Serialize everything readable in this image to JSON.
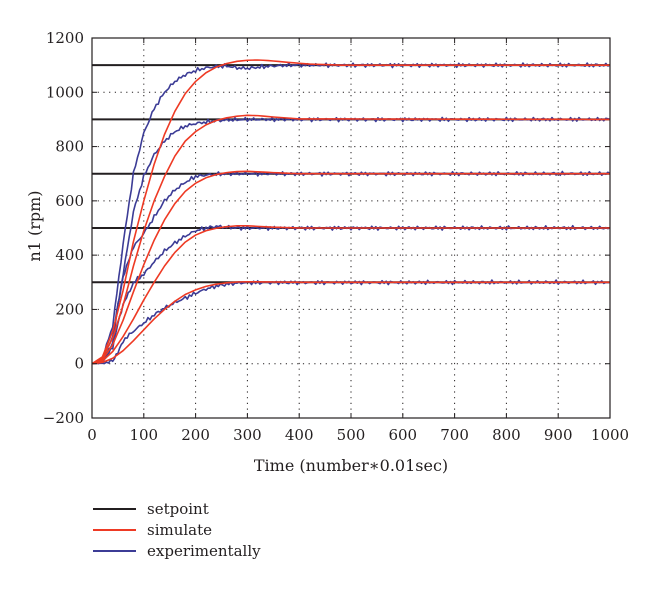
{
  "chart_data": {
    "type": "line",
    "title": "",
    "xlabel": "Time (number∗0.01sec)",
    "ylabel": "n1 (rpm)",
    "xlim": [
      0,
      1000
    ],
    "ylim": [
      -200,
      1200
    ],
    "xticks": [
      0,
      100,
      200,
      300,
      400,
      500,
      600,
      700,
      800,
      900,
      1000
    ],
    "yticks": [
      -200,
      0,
      200,
      400,
      600,
      800,
      1000,
      1200
    ],
    "xtick_labels": [
      "0",
      "100",
      "200",
      "300",
      "400",
      "500",
      "600",
      "700",
      "800",
      "900",
      "1000"
    ],
    "ytick_labels": [
      "−200",
      "0",
      "200",
      "400",
      "600",
      "800",
      "1000",
      "1200"
    ],
    "grid": true,
    "legend_position": "bottom-left",
    "legend": [
      {
        "label": "setpoint",
        "color": "#231f20"
      },
      {
        "label": "simulate",
        "color": "#ee3a24"
      },
      {
        "label": "experimentally",
        "color": "#3c3c96"
      }
    ],
    "setpoints": [
      300,
      500,
      700,
      900,
      1100
    ],
    "series": [
      {
        "group": "setpoint",
        "color": "#231f20",
        "x": [
          0,
          1000
        ],
        "y": [
          300,
          300
        ]
      },
      {
        "group": "setpoint",
        "color": "#231f20",
        "x": [
          0,
          1000
        ],
        "y": [
          500,
          500
        ]
      },
      {
        "group": "setpoint",
        "color": "#231f20",
        "x": [
          0,
          1000
        ],
        "y": [
          700,
          700
        ]
      },
      {
        "group": "setpoint",
        "color": "#231f20",
        "x": [
          0,
          1000
        ],
        "y": [
          900,
          900
        ]
      },
      {
        "group": "setpoint",
        "color": "#231f20",
        "x": [
          0,
          1000
        ],
        "y": [
          1100,
          1100
        ]
      },
      {
        "group": "simulate",
        "color": "#ee3a24",
        "x": [
          0,
          20,
          40,
          60,
          80,
          100,
          120,
          140,
          160,
          180,
          200,
          220,
          240,
          260,
          280,
          300,
          350,
          400,
          1000
        ],
        "y": [
          0,
          5,
          20,
          48,
          85,
          125,
          165,
          200,
          230,
          255,
          272,
          285,
          293,
          298,
          301,
          302,
          301,
          300,
          300
        ]
      },
      {
        "group": "simulate",
        "color": "#ee3a24",
        "x": [
          0,
          20,
          40,
          60,
          80,
          100,
          120,
          140,
          160,
          180,
          200,
          220,
          240,
          260,
          280,
          300,
          320,
          350,
          400,
          1000
        ],
        "y": [
          0,
          10,
          45,
          100,
          165,
          235,
          300,
          360,
          410,
          448,
          474,
          490,
          499,
          505,
          508,
          508,
          506,
          503,
          500,
          500
        ]
      },
      {
        "group": "simulate",
        "color": "#ee3a24",
        "x": [
          0,
          20,
          40,
          60,
          80,
          100,
          120,
          140,
          160,
          180,
          200,
          220,
          240,
          260,
          280,
          300,
          320,
          350,
          400,
          1000
        ],
        "y": [
          0,
          15,
          70,
          160,
          265,
          365,
          455,
          530,
          590,
          635,
          665,
          685,
          697,
          704,
          708,
          709,
          707,
          704,
          700,
          700
        ]
      },
      {
        "group": "simulate",
        "color": "#ee3a24",
        "x": [
          0,
          20,
          40,
          60,
          80,
          100,
          120,
          140,
          160,
          180,
          200,
          220,
          240,
          260,
          280,
          300,
          320,
          350,
          400,
          1000
        ],
        "y": [
          0,
          20,
          95,
          215,
          360,
          490,
          600,
          690,
          765,
          820,
          855,
          880,
          896,
          906,
          912,
          915,
          914,
          909,
          902,
          900
        ]
      },
      {
        "group": "simulate",
        "color": "#ee3a24",
        "x": [
          0,
          20,
          40,
          60,
          80,
          100,
          120,
          140,
          160,
          180,
          200,
          220,
          240,
          260,
          280,
          300,
          320,
          340,
          380,
          420,
          480,
          1000
        ],
        "y": [
          0,
          25,
          120,
          270,
          450,
          600,
          735,
          845,
          930,
          995,
          1040,
          1072,
          1093,
          1106,
          1114,
          1118,
          1119,
          1117,
          1110,
          1104,
          1100,
          1100
        ]
      },
      {
        "group": "experimentally",
        "color": "#3c3c96",
        "x": [
          0,
          20,
          40,
          50,
          60,
          80,
          100,
          120,
          140,
          160,
          180,
          200,
          220,
          240,
          260,
          280,
          300,
          1000
        ],
        "y": [
          0,
          2,
          10,
          40,
          85,
          120,
          150,
          180,
          205,
          225,
          242,
          260,
          275,
          286,
          293,
          297,
          299,
          300
        ]
      },
      {
        "group": "experimentally",
        "color": "#3c3c96",
        "x": [
          0,
          20,
          40,
          50,
          60,
          70,
          80,
          100,
          120,
          140,
          160,
          180,
          200,
          220,
          240,
          260,
          280,
          1000
        ],
        "y": [
          0,
          5,
          60,
          150,
          220,
          260,
          300,
          330,
          375,
          415,
          445,
          470,
          490,
          500,
          506,
          503,
          500,
          500
        ]
      },
      {
        "group": "experimentally",
        "color": "#3c3c96",
        "x": [
          0,
          20,
          40,
          50,
          60,
          70,
          80,
          100,
          120,
          140,
          160,
          180,
          200,
          220,
          240,
          260,
          300,
          1000
        ],
        "y": [
          0,
          8,
          75,
          220,
          320,
          380,
          430,
          480,
          540,
          600,
          640,
          668,
          690,
          695,
          698,
          700,
          700,
          700
        ]
      },
      {
        "group": "experimentally",
        "color": "#3c3c96",
        "x": [
          0,
          20,
          40,
          60,
          80,
          100,
          120,
          140,
          160,
          180,
          200,
          220,
          240,
          260,
          300,
          340,
          1000
        ],
        "y": [
          0,
          12,
          100,
          330,
          560,
          690,
          770,
          820,
          855,
          875,
          885,
          890,
          895,
          898,
          900,
          900,
          900
        ]
      },
      {
        "group": "experimentally",
        "color": "#3c3c96",
        "x": [
          0,
          20,
          40,
          60,
          80,
          100,
          120,
          140,
          160,
          180,
          200,
          220,
          240,
          260,
          280,
          300,
          320,
          340,
          380,
          420,
          1000
        ],
        "y": [
          0,
          18,
          140,
          440,
          700,
          850,
          940,
          1000,
          1040,
          1065,
          1080,
          1090,
          1095,
          1097,
          1090,
          1088,
          1092,
          1096,
          1100,
          1100,
          1100
        ]
      }
    ]
  }
}
